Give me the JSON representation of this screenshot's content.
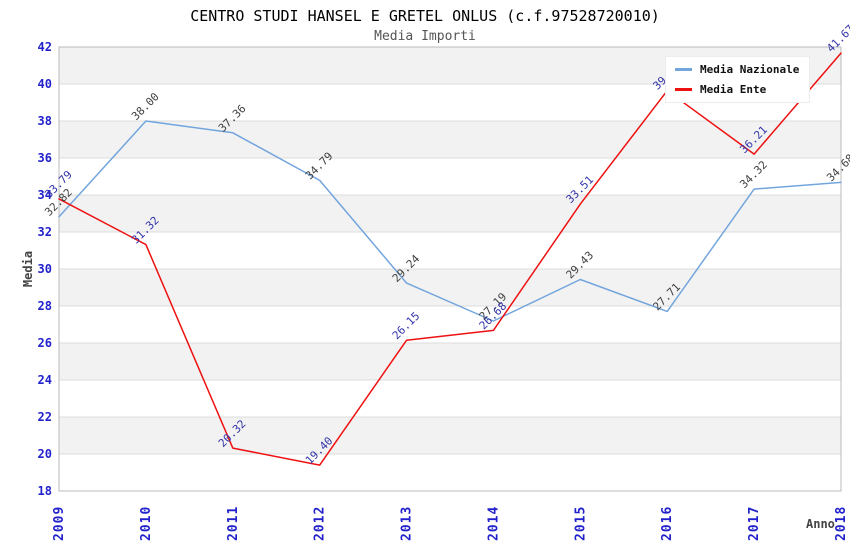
{
  "header": {
    "title": "CENTRO STUDI HANSEL E GRETEL ONLUS (c.f.97528720010)",
    "subtitle": "Media Importi"
  },
  "axes": {
    "x_label": "Anno",
    "y_label": "Media",
    "y_ticks": [
      42,
      40,
      38,
      36,
      34,
      32,
      30,
      28,
      26,
      24,
      22,
      20,
      18
    ],
    "x_ticks": [
      "2009",
      "2010",
      "2011",
      "2012",
      "2013",
      "2014",
      "2015",
      "2016",
      "2017",
      "2018"
    ]
  },
  "legend": {
    "items": [
      {
        "label": "Media Nazionale",
        "color": "#73a5dd"
      },
      {
        "label": "Media Ente",
        "color": "#ee1111"
      }
    ],
    "position": "top-right"
  },
  "chart_data": {
    "type": "line",
    "title": "CENTRO STUDI HANSEL E GRETEL ONLUS (c.f.97528720010)",
    "subtitle": "Media Importi",
    "xlabel": "Anno",
    "ylabel": "Media",
    "ylim": [
      18,
      42
    ],
    "grid": "horizontal-bands-every-2-units",
    "x": [
      "2009",
      "2010",
      "2011",
      "2012",
      "2013",
      "2014",
      "2015",
      "2016",
      "2017",
      "2018"
    ],
    "series": [
      {
        "name": "Media Nazionale",
        "color": "#73a5dd",
        "label_color": "#404040",
        "values": [
          32.82,
          38.0,
          37.36,
          34.79,
          29.24,
          27.19,
          29.43,
          27.71,
          34.32,
          34.68
        ]
      },
      {
        "name": "Media Ente",
        "color": "#ee1111",
        "label_color": "#3333aa",
        "values": [
          33.79,
          31.32,
          20.32,
          19.4,
          26.15,
          26.68,
          33.51,
          39.64,
          36.21,
          41.67
        ]
      }
    ]
  },
  "colors": {
    "band": "#f2f2f2",
    "grid": "#dcdcdc",
    "border": "#bbbbbb",
    "tick_text": "#2222cc",
    "title": "#000000",
    "subtitle": "#555555",
    "axis_label": "#444444"
  }
}
